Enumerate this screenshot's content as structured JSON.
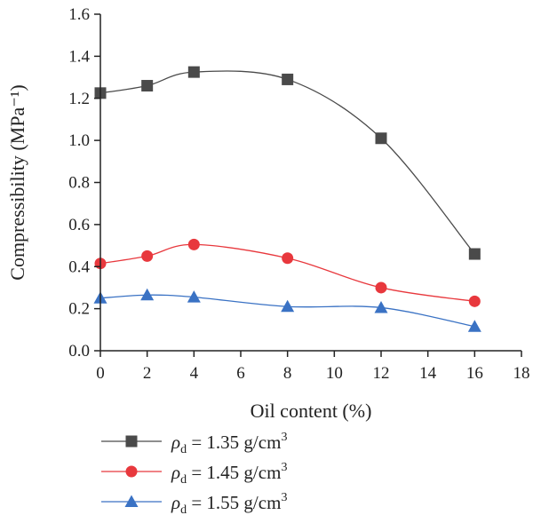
{
  "chart_data": {
    "type": "line",
    "xlabel": "Oil content (%)",
    "ylabel": "Compressibility (MPa⁻¹)",
    "xlim": [
      0,
      18
    ],
    "ylim": [
      0.0,
      1.6
    ],
    "xticks": [
      "0",
      "2",
      "4",
      "6",
      "8",
      "10",
      "12",
      "14",
      "16",
      "18"
    ],
    "yticks": [
      "0.0",
      "0.2",
      "0.4",
      "0.6",
      "0.8",
      "1.0",
      "1.2",
      "1.4",
      "1.6"
    ],
    "x": [
      0,
      2,
      4,
      8,
      12,
      16
    ],
    "grid": false,
    "legend_position": "bottom",
    "series": [
      {
        "name": "ρd = 1.35 g/cm3",
        "legend": {
          "symbol": "ρ",
          "sub": "d",
          "text": " = 1.35 g/cm",
          "sup": "3"
        },
        "marker": "square",
        "color": "#4a4a4a",
        "values": [
          1.225,
          1.26,
          1.325,
          1.29,
          1.01,
          0.46
        ]
      },
      {
        "name": "ρd = 1.45 g/cm3",
        "legend": {
          "symbol": "ρ",
          "sub": "d",
          "text": " = 1.45 g/cm",
          "sup": "3"
        },
        "marker": "circle",
        "color": "#e8383d",
        "values": [
          0.415,
          0.45,
          0.505,
          0.44,
          0.3,
          0.235
        ]
      },
      {
        "name": "ρd = 1.55 g/cm3",
        "legend": {
          "symbol": "ρ",
          "sub": "d",
          "text": " = 1.55 g/cm",
          "sup": "3"
        },
        "marker": "triangle",
        "color": "#3a72c4",
        "values": [
          0.25,
          0.265,
          0.255,
          0.21,
          0.205,
          0.115
        ]
      }
    ]
  }
}
